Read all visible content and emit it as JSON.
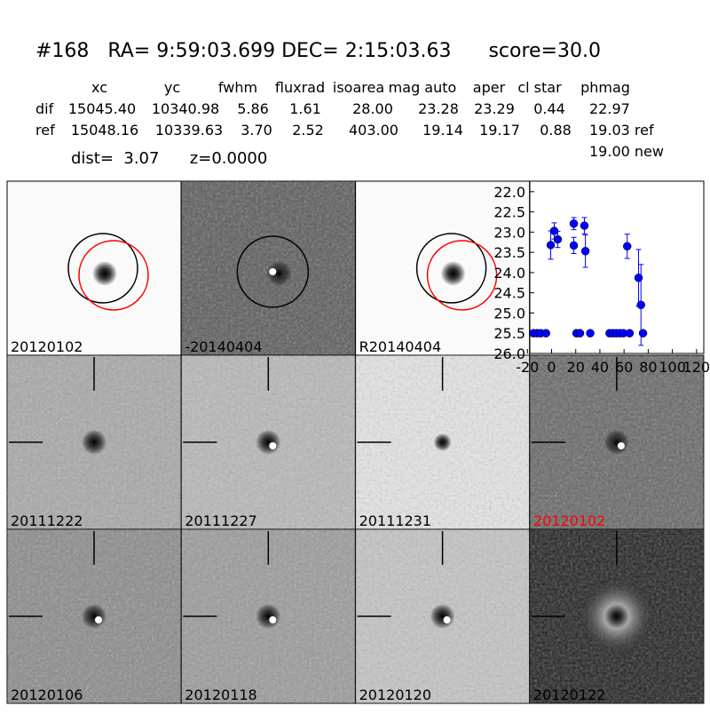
{
  "header": {
    "title": "#168   RA= 9:59:03.699 DEC= 2:15:03.63      score=30.0",
    "dist": "dist=  3.07      z=0.0000"
  },
  "table": {
    "columns": [
      "xc",
      "yc",
      "fwhm",
      "fluxrad",
      "isoarea",
      "mag auto",
      "aper",
      "cl star",
      "phmag"
    ],
    "rows": [
      [
        "dif",
        "15045.40",
        "10340.98",
        "5.86",
        "1.61",
        "28.00",
        "23.28",
        "23.29",
        "0.44",
        "22.97"
      ],
      [
        "ref",
        "15048.16",
        "10339.63",
        "3.70",
        "2.52",
        "403.00",
        "19.14",
        "19.17",
        "0.88",
        "19.03 ref"
      ]
    ],
    "extra": "19.00 new"
  },
  "panels": [
    {
      "label": "20120102"
    },
    {
      "label": "-20140404"
    },
    {
      "label": "R20140404"
    },
    {
      "label": "20111222"
    },
    {
      "label": "20111227"
    },
    {
      "label": "20111231"
    },
    {
      "label": "20120102",
      "color": "#ff0000"
    },
    {
      "label": "20120106"
    },
    {
      "label": "20120118"
    },
    {
      "label": "20120120"
    },
    {
      "label": "20120122"
    }
  ],
  "chart_data": {
    "type": "errorbar",
    "color": "#0000ff",
    "xlim": [
      -18,
      126
    ],
    "xticks": [
      -20,
      0,
      20,
      40,
      60,
      80,
      100,
      120
    ],
    "ylim": [
      26.0,
      21.74
    ],
    "yticks": [
      {
        "value": 22,
        "label": "22.0"
      },
      {
        "value": 22.5,
        "label": "22.5"
      },
      {
        "value": 23,
        "label": "23.0"
      },
      {
        "value": 23.5,
        "label": "23.5"
      },
      {
        "value": 24,
        "label": "24.0"
      },
      {
        "value": 24.5,
        "label": "24.5"
      },
      {
        "value": 25,
        "label": "25.0"
      },
      {
        "value": 25.5,
        "label": "25.5"
      },
      {
        "value": 26,
        "label": "26.0"
      }
    ],
    "x": [
      -15,
      -12,
      -9,
      -4.6,
      -0.7,
      2.2,
      5.1,
      18.4,
      18.4,
      20.6,
      23.5,
      27.2,
      28,
      32,
      48,
      50.7,
      53.6,
      56.6,
      59.5,
      62.6,
      64.6,
      72,
      74,
      75.7
    ],
    "values": [
      25.5,
      25.5,
      25.5,
      25.5,
      23.32,
      22.97,
      23.18,
      22.79,
      23.33,
      25.5,
      25.5,
      22.84,
      23.47,
      25.5,
      25.5,
      25.5,
      25.5,
      25.5,
      25.5,
      23.35,
      25.5,
      24.13,
      24.8,
      25.5
    ],
    "errors": [
      0,
      0,
      0,
      0,
      0.35,
      0.2,
      0.2,
      0.15,
      0.2,
      0,
      0,
      0.2,
      0.4,
      0,
      0,
      0,
      0,
      0,
      0,
      0.3,
      0,
      0.7,
      1.0,
      0
    ]
  }
}
